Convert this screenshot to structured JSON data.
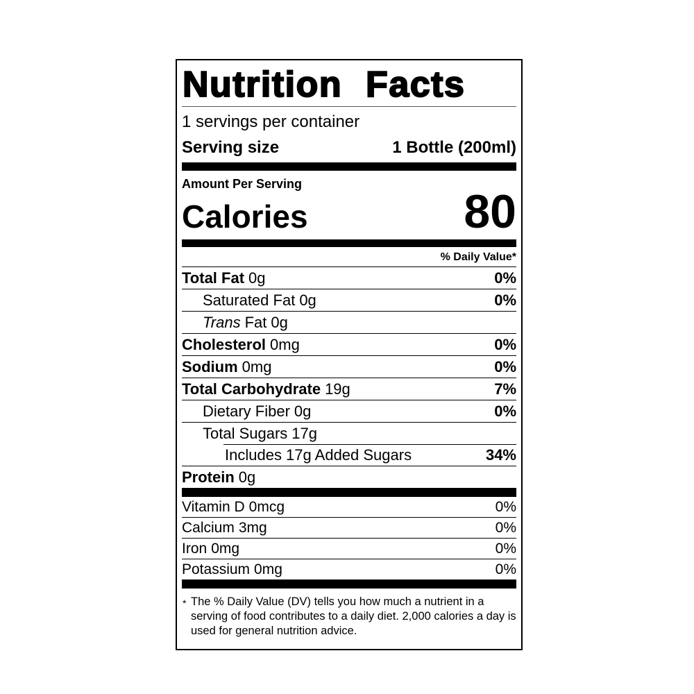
{
  "label": {
    "title": "Nutrition Facts",
    "servings_per_container": "1 servings per container",
    "serving_size": {
      "label": "Serving size",
      "value": "1 Bottle (200ml)"
    },
    "amount_per_serving": "Amount Per Serving",
    "calories": {
      "label": "Calories",
      "value": "80"
    },
    "daily_value_header": "% Daily Value*",
    "nutrients": [
      {
        "name": "Total Fat",
        "amount": "0g",
        "dv": "0%"
      },
      {
        "name": "Saturated Fat",
        "amount": "0g",
        "dv": "0%"
      },
      {
        "name_italic": "Trans",
        "name": "Fat",
        "amount": "0g"
      },
      {
        "name": "Cholesterol",
        "amount": "0mg",
        "dv": "0%"
      },
      {
        "name": "Sodium",
        "amount": "0mg",
        "dv": "0%"
      },
      {
        "name": "Total Carbohydrate",
        "amount": "19g",
        "dv": "7%"
      },
      {
        "name": "Dietary Fiber",
        "amount": "0g",
        "dv": "0%"
      },
      {
        "name": "Total Sugars",
        "amount": "17g"
      },
      {
        "name": "Includes 17g Added Sugars",
        "dv": "34%"
      },
      {
        "name": "Protein",
        "amount": "0g"
      }
    ],
    "vitamins": [
      {
        "name": "Vitamin D",
        "amount": "0mcg",
        "dv": "0%"
      },
      {
        "name": "Calcium",
        "amount": "3mg",
        "dv": "0%"
      },
      {
        "name": "Iron",
        "amount": "0mg",
        "dv": "0%"
      },
      {
        "name": "Potassium",
        "amount": "0mg",
        "dv": "0%"
      }
    ],
    "footnote": {
      "marker": "*",
      "text": "The % Daily Value (DV) tells you how much a nutrient in a serving of food contributes to a daily diet. 2,000 calories a day is used for general nutrition advice."
    }
  }
}
